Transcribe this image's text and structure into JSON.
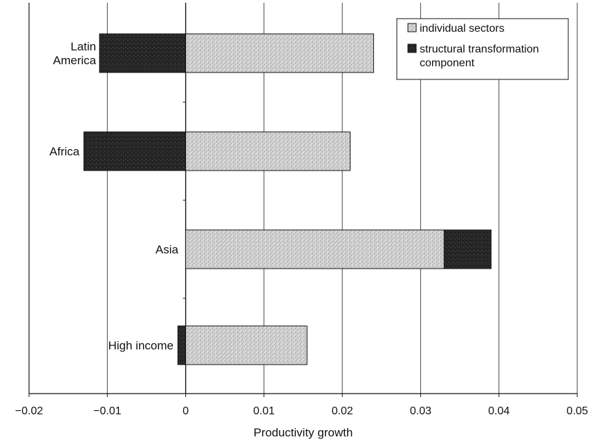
{
  "chart_data": {
    "type": "bar",
    "orientation": "horizontal",
    "stacked": true,
    "categories": [
      "Latin America",
      "Africa",
      "Asia",
      "High income"
    ],
    "category_label_lines": [
      [
        "Latin",
        "America"
      ],
      [
        "Africa"
      ],
      [
        "Asia"
      ],
      [
        "High income"
      ]
    ],
    "series": [
      {
        "name": "individual sectors",
        "values": [
          0.024,
          0.021,
          0.033,
          0.0155
        ],
        "color": "#c8c8c8"
      },
      {
        "name": "structural transformation component",
        "values": [
          -0.011,
          -0.013,
          0.006,
          -0.001
        ],
        "color": "#2a2a2a"
      }
    ],
    "xlabel": "Productivity growth",
    "ylabel": "",
    "title": "",
    "xlim": [
      -0.02,
      0.05
    ],
    "xticks": [
      -0.02,
      -0.01,
      0,
      0.01,
      0.02,
      0.03,
      0.04,
      0.05
    ],
    "xtick_labels": [
      "−0.02",
      "−0.01",
      "0",
      "0.01",
      "0.02",
      "0.03",
      "0.04",
      "0.05"
    ],
    "grid": "vertical",
    "legend_position": "top-right",
    "legend_label_lines": [
      [
        "individual sectors"
      ],
      [
        "structural transformation",
        "component"
      ]
    ]
  }
}
